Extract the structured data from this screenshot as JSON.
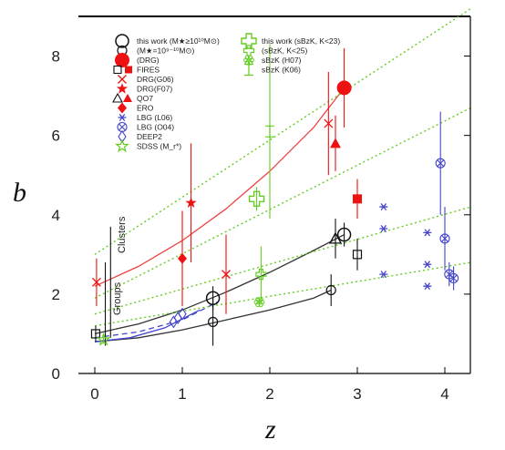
{
  "chart_data": {
    "type": "scatter",
    "xlabel": "z",
    "ylabel": "b",
    "xlim": [
      -0.25,
      4.3
    ],
    "ylim": [
      0,
      9
    ],
    "xticks": [
      "0",
      "1",
      "2",
      "3",
      "4"
    ],
    "yticks": [
      "0",
      "2",
      "4",
      "6",
      "8"
    ],
    "annotations": [
      "Clusters",
      "Groups"
    ],
    "legend_col1": [
      {
        "label": "this work (M★≥10¹⁰M⊙)",
        "marker": "big-open-circle",
        "color": "#111111"
      },
      {
        "label": "(M★=10⁹⁻¹⁰M⊙)",
        "marker": "small-open-circle",
        "color": "#111111"
      },
      {
        "label": "(DRG)",
        "marker": "big-filled-circle",
        "color": "#ee1111"
      },
      {
        "label": "FIRES",
        "marker": "square-pair",
        "color": "#111111"
      },
      {
        "label": "DRG(G06)",
        "marker": "x",
        "color": "#ee1111"
      },
      {
        "label": "DRG(F07)",
        "marker": "star",
        "color": "#ee1111"
      },
      {
        "label": "QO7",
        "marker": "triangle-pair",
        "color": "#111111"
      },
      {
        "label": "ERO",
        "marker": "diamond",
        "color": "#ee1111"
      },
      {
        "label": "LBG (L06)",
        "marker": "asterisk",
        "color": "#4444cc"
      },
      {
        "label": "LBG (O04)",
        "marker": "circled-x",
        "color": "#4444cc"
      },
      {
        "label": "DEEP2",
        "marker": "open-diamond",
        "color": "#4444cc"
      },
      {
        "label": "SDSS (M_r*)",
        "marker": "open-star",
        "color": "#66cc22"
      }
    ],
    "legend_col2": [
      {
        "label": "this work (sBzK, K<23)",
        "marker": "big-open-cross",
        "color": "#66cc22"
      },
      {
        "label": "(sBzK, K<25)",
        "marker": "small-open-cross",
        "color": "#66cc22"
      },
      {
        "label": "sBzK (H07)",
        "marker": "flower",
        "color": "#66cc22"
      },
      {
        "label": "sBzK (K06)",
        "marker": "errorbar",
        "color": "#66cc22"
      }
    ],
    "series": [
      {
        "marker": "big-open-circle",
        "color": "#111111",
        "points": [
          {
            "x": 1.35,
            "y": 1.9,
            "yerr": [
              0.3,
              0.3
            ]
          },
          {
            "x": 2.85,
            "y": 3.5,
            "yerr": [
              0.3,
              0.3
            ]
          }
        ]
      },
      {
        "marker": "small-open-circle",
        "color": "#111111",
        "points": [
          {
            "x": 1.35,
            "y": 1.3,
            "yerr": [
              0.6,
              0.6
            ]
          },
          {
            "x": 2.7,
            "y": 2.1,
            "yerr": [
              0.4,
              0.4
            ]
          }
        ]
      },
      {
        "marker": "big-filled-circle",
        "color": "#ee1111",
        "points": [
          {
            "x": 2.85,
            "y": 7.2,
            "yerr": [
              1.0,
              1.0
            ]
          }
        ]
      },
      {
        "marker": "open-square",
        "color": "#111111",
        "points": [
          {
            "x": 3.0,
            "y": 3.0,
            "yerr": [
              0.4,
              0.4
            ]
          },
          {
            "x": 0.01,
            "y": 1.0,
            "yerr": [
              0.2,
              0.2
            ]
          }
        ]
      },
      {
        "marker": "filled-square",
        "color": "#ee1111",
        "points": [
          {
            "x": 3.0,
            "y": 4.4,
            "yerr": [
              0.5,
              0.5
            ]
          }
        ]
      },
      {
        "marker": "x",
        "color": "#ee1111",
        "points": [
          {
            "x": 1.5,
            "y": 2.5,
            "yerr": [
              1.0,
              1.0
            ]
          },
          {
            "x": 2.67,
            "y": 6.3,
            "yerr": [
              1.3,
              1.3
            ]
          },
          {
            "x": 0.02,
            "y": 2.3,
            "yerr": [
              0.6,
              0.6
            ]
          }
        ]
      },
      {
        "marker": "star",
        "color": "#ee1111",
        "points": [
          {
            "x": 1.1,
            "y": 4.3,
            "yerr": [
              1.5,
              1.5
            ]
          }
        ]
      },
      {
        "marker": "open-triangle",
        "color": "#111111",
        "points": [
          {
            "x": 2.75,
            "y": 3.4,
            "yerr": [
              0.5,
              0.5
            ]
          }
        ]
      },
      {
        "marker": "filled-triangle",
        "color": "#ee1111",
        "points": [
          {
            "x": 2.75,
            "y": 5.8,
            "yerr": [
              0.7,
              0.7
            ]
          }
        ]
      },
      {
        "marker": "diamond",
        "color": "#ee1111",
        "points": [
          {
            "x": 1.0,
            "y": 2.9,
            "yerr": [
              1.2,
              1.2
            ]
          }
        ]
      },
      {
        "marker": "asterisk",
        "color": "#4444cc",
        "points": [
          {
            "x": 3.3,
            "y": 4.2,
            "yerr": [
              0,
              0
            ]
          },
          {
            "x": 3.3,
            "y": 3.65,
            "yerr": [
              0,
              0
            ]
          },
          {
            "x": 3.3,
            "y": 2.5,
            "yerr": [
              0,
              0
            ]
          },
          {
            "x": 3.8,
            "y": 3.55,
            "yerr": [
              0,
              0
            ]
          },
          {
            "x": 3.8,
            "y": 2.75,
            "yerr": [
              0,
              0
            ]
          },
          {
            "x": 3.8,
            "y": 2.2,
            "yerr": [
              0,
              0
            ]
          }
        ]
      },
      {
        "marker": "circled-x",
        "color": "#4444cc",
        "points": [
          {
            "x": 3.95,
            "y": 5.3,
            "yerr": [
              1.3,
              1.3
            ]
          },
          {
            "x": 4.0,
            "y": 3.4,
            "yerr": [
              0.8,
              0.8
            ]
          },
          {
            "x": 4.05,
            "y": 2.5,
            "yerr": [
              0.3,
              0.3
            ]
          },
          {
            "x": 4.1,
            "y": 2.4,
            "yerr": [
              0.3,
              0.3
            ]
          }
        ]
      },
      {
        "marker": "open-diamond",
        "color": "#4444cc",
        "points": [
          {
            "x": 0.9,
            "y": 1.3,
            "yerr": [
              0,
              0
            ]
          },
          {
            "x": 0.95,
            "y": 1.4,
            "yerr": [
              0,
              0
            ]
          },
          {
            "x": 1.0,
            "y": 1.5,
            "yerr": [
              0,
              0
            ]
          }
        ]
      },
      {
        "marker": "open-star",
        "color": "#66cc22",
        "points": [
          {
            "x": 0.1,
            "y": 0.85,
            "yerr": [
              0.1,
              0.1
            ]
          }
        ]
      },
      {
        "marker": "big-open-cross",
        "color": "#66cc22",
        "points": [
          {
            "x": 1.85,
            "y": 4.4,
            "yerr": [
              0.3,
              0.3
            ]
          }
        ]
      },
      {
        "marker": "small-open-cross",
        "color": "#66cc22",
        "points": [
          {
            "x": 1.9,
            "y": 2.5,
            "yerr": [
              0.7,
              0.7
            ]
          }
        ]
      },
      {
        "marker": "flower",
        "color": "#66cc22",
        "points": [
          {
            "x": 1.88,
            "y": 1.8,
            "yerr": [
              0.1,
              0.1
            ]
          }
        ]
      },
      {
        "marker": "errorbar",
        "color": "#66cc22",
        "points": [
          {
            "x": 2.0,
            "y": 6.1,
            "yerr": [
              2.2,
              2.2
            ]
          }
        ]
      }
    ],
    "curves": [
      {
        "style": "solid",
        "color": "#ee4444",
        "points": [
          [
            0,
            2.2
          ],
          [
            0.5,
            2.7
          ],
          [
            1,
            3.35
          ],
          [
            1.5,
            4.15
          ],
          [
            2,
            5.1
          ],
          [
            2.5,
            6.2
          ],
          [
            2.85,
            7.2
          ]
        ]
      },
      {
        "style": "solid",
        "color": "#333333",
        "points": [
          [
            0,
            1.0
          ],
          [
            0.5,
            1.25
          ],
          [
            1,
            1.6
          ],
          [
            1.5,
            2.05
          ],
          [
            2,
            2.55
          ],
          [
            2.5,
            3.1
          ],
          [
            2.85,
            3.5
          ]
        ]
      },
      {
        "style": "solid",
        "color": "#333333",
        "points": [
          [
            0,
            0.8
          ],
          [
            0.5,
            0.9
          ],
          [
            1,
            1.1
          ],
          [
            1.5,
            1.35
          ],
          [
            2,
            1.6
          ],
          [
            2.5,
            1.9
          ],
          [
            2.7,
            2.1
          ]
        ]
      },
      {
        "style": "dashed",
        "color": "#4444cc",
        "points": [
          [
            0,
            0.9
          ],
          [
            0.5,
            1.05
          ],
          [
            1,
            1.35
          ],
          [
            1.4,
            1.8
          ]
        ]
      },
      {
        "style": "solid",
        "color": "#4444cc",
        "points": [
          [
            0,
            0.8
          ],
          [
            0.4,
            0.9
          ],
          [
            0.8,
            1.15
          ],
          [
            1.2,
            1.6
          ]
        ]
      },
      {
        "style": "dotted",
        "color": "#66cc22",
        "points": [
          [
            0,
            3.0
          ],
          [
            4.3,
            9.2
          ]
        ]
      },
      {
        "style": "dotted",
        "color": "#66cc22",
        "points": [
          [
            0,
            1.9
          ],
          [
            4.3,
            6.7
          ]
        ]
      },
      {
        "style": "dotted",
        "color": "#66cc22",
        "points": [
          [
            0,
            1.5
          ],
          [
            4.3,
            4.2
          ]
        ]
      },
      {
        "style": "dotted",
        "color": "#66cc22",
        "points": [
          [
            0,
            1.2
          ],
          [
            4.3,
            2.8
          ]
        ]
      }
    ],
    "vlines": [
      {
        "x": 0.18,
        "y1": 0.9,
        "y2": 3.7,
        "color": "#111111"
      },
      {
        "x": 0.12,
        "y1": 0.7,
        "y2": 2.8,
        "color": "#111111"
      }
    ]
  }
}
